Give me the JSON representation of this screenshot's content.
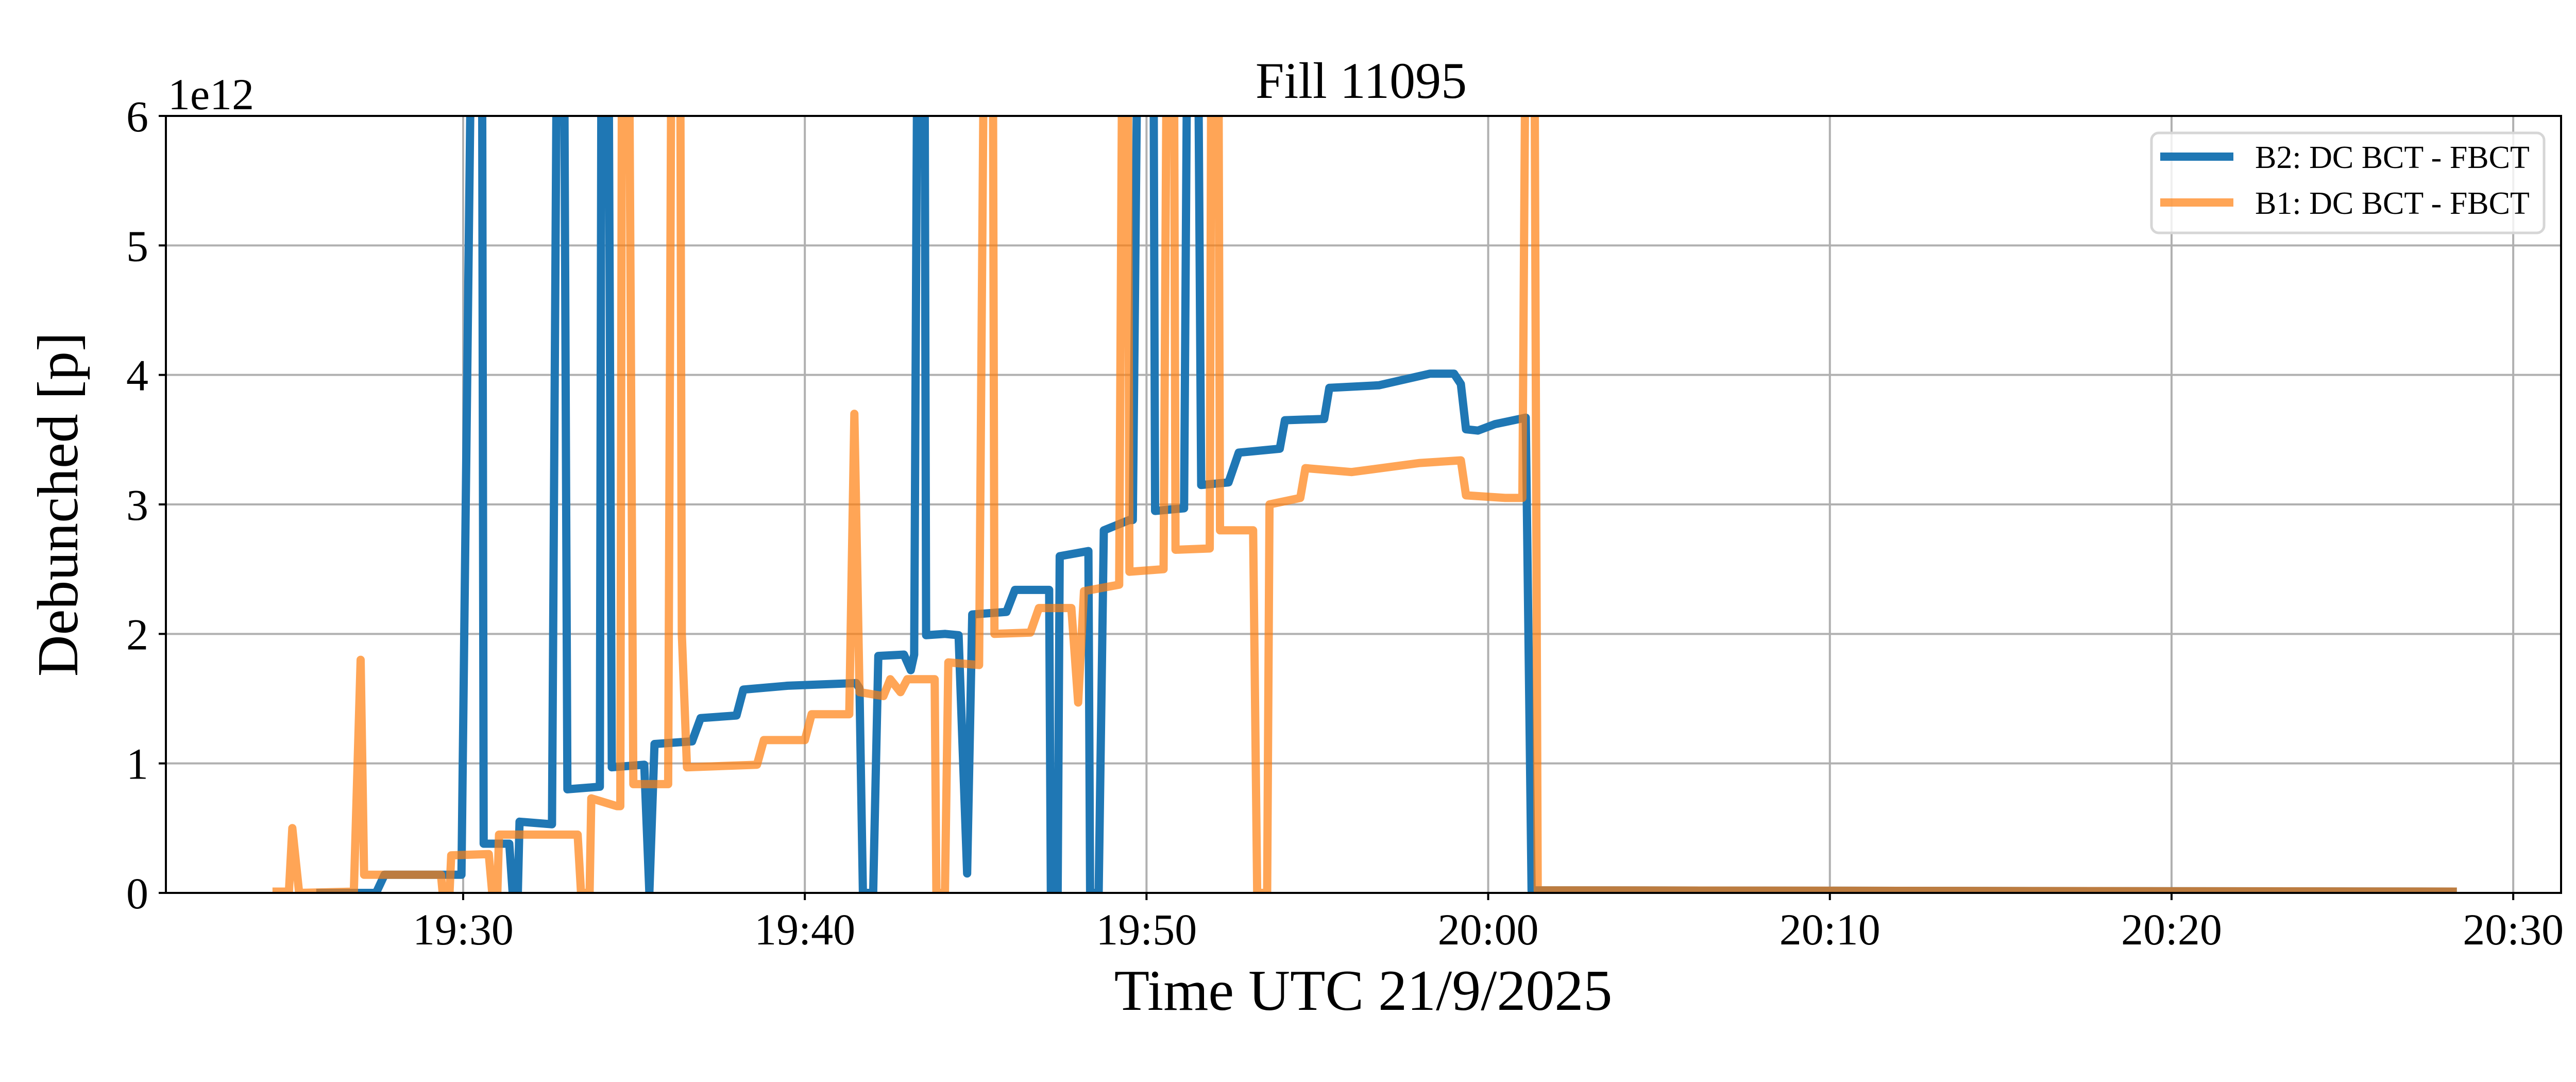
{
  "chart_data": {
    "type": "line",
    "title": "Fill 11095",
    "xlabel": "Time UTC 21/9/2025",
    "ylabel": "Debunched [p]",
    "y_offset_label": "1e12",
    "x_unit": "minutes after 19:30 UTC",
    "y_unit": "1e12 p",
    "xlim": [
      -8.7,
      61.4
    ],
    "ylim": [
      0,
      6
    ],
    "grid": true,
    "legend_position": "top-right",
    "x_ticks": [
      {
        "v": 0,
        "label": "19:30"
      },
      {
        "v": 10,
        "label": "19:40"
      },
      {
        "v": 20,
        "label": "19:50"
      },
      {
        "v": 30,
        "label": "20:00"
      },
      {
        "v": 40,
        "label": "20:10"
      },
      {
        "v": 50,
        "label": "20:20"
      },
      {
        "v": 60,
        "label": "20:30"
      }
    ],
    "y_ticks": [
      {
        "v": 0,
        "label": "0"
      },
      {
        "v": 1,
        "label": "1"
      },
      {
        "v": 2,
        "label": "2"
      },
      {
        "v": 3,
        "label": "3"
      },
      {
        "v": 4,
        "label": "4"
      },
      {
        "v": 5,
        "label": "5"
      },
      {
        "v": 6,
        "label": "6"
      }
    ],
    "series": [
      {
        "name": "B2: DC BCT - FBCT",
        "color": "#1f77b4",
        "opacity": 1,
        "points": [
          [
            -4.3,
            0
          ],
          [
            -2.55,
            0
          ],
          [
            -2.3,
            0.14
          ],
          [
            -0.05,
            0.14
          ],
          [
            0.25,
            7
          ],
          [
            0.55,
            7
          ],
          [
            0.6,
            0.38
          ],
          [
            1.35,
            0.38
          ],
          [
            1.45,
            0
          ],
          [
            1.6,
            0
          ],
          [
            1.65,
            0.55
          ],
          [
            2.6,
            0.53
          ],
          [
            2.75,
            7
          ],
          [
            2.95,
            7
          ],
          [
            3.05,
            0.8
          ],
          [
            4.0,
            0.82
          ],
          [
            4.05,
            7
          ],
          [
            4.25,
            7
          ],
          [
            4.35,
            0.97
          ],
          [
            5.3,
            0.99
          ],
          [
            5.45,
            0
          ],
          [
            5.6,
            1.15
          ],
          [
            6.7,
            1.17
          ],
          [
            6.95,
            1.35
          ],
          [
            8.0,
            1.37
          ],
          [
            8.2,
            1.57
          ],
          [
            9.5,
            1.6
          ],
          [
            11.5,
            1.62
          ],
          [
            11.6,
            1.58
          ],
          [
            11.7,
            0
          ],
          [
            12.0,
            0
          ],
          [
            12.15,
            1.83
          ],
          [
            12.9,
            1.84
          ],
          [
            13.1,
            1.72
          ],
          [
            13.2,
            1.84
          ],
          [
            13.3,
            7
          ],
          [
            13.5,
            7
          ],
          [
            13.55,
            1.99
          ],
          [
            14.1,
            2.0
          ],
          [
            14.5,
            1.99
          ],
          [
            14.75,
            0.15
          ],
          [
            14.9,
            2.15
          ],
          [
            15.9,
            2.17
          ],
          [
            16.15,
            2.34
          ],
          [
            17.15,
            2.34
          ],
          [
            17.2,
            0
          ],
          [
            17.4,
            0
          ],
          [
            17.46,
            2.6
          ],
          [
            18.3,
            2.64
          ],
          [
            18.35,
            0
          ],
          [
            18.6,
            0
          ],
          [
            18.75,
            2.8
          ],
          [
            19.5,
            2.88
          ],
          [
            19.6,
            2.88
          ],
          [
            19.75,
            7
          ],
          [
            20.2,
            7
          ],
          [
            20.25,
            2.95
          ],
          [
            21.1,
            2.97
          ],
          [
            21.2,
            7
          ],
          [
            21.5,
            7
          ],
          [
            21.6,
            3.15
          ],
          [
            22.4,
            3.17
          ],
          [
            22.7,
            3.4
          ],
          [
            23.9,
            3.43
          ],
          [
            24.05,
            3.65
          ],
          [
            25.2,
            3.66
          ],
          [
            25.35,
            3.9
          ],
          [
            26.8,
            3.92
          ],
          [
            28.3,
            4.01
          ],
          [
            29.0,
            4.01
          ],
          [
            29.2,
            3.93
          ],
          [
            29.35,
            3.58
          ],
          [
            29.7,
            3.57
          ],
          [
            30.2,
            3.62
          ],
          [
            31.1,
            3.67
          ],
          [
            31.27,
            0.02
          ],
          [
            58.35,
            0.01
          ]
        ]
      },
      {
        "name": "B1: DC BCT - FBCT",
        "color": "#ff7f0e",
        "opacity": 0.7,
        "points": [
          [
            -5.58,
            0.01
          ],
          [
            -5.1,
            0.01
          ],
          [
            -5.0,
            0.5
          ],
          [
            -4.8,
            0
          ],
          [
            -3.2,
            0.01
          ],
          [
            -3.0,
            1.8
          ],
          [
            -2.9,
            0.14
          ],
          [
            -0.65,
            0.14
          ],
          [
            -0.6,
            0
          ],
          [
            -0.4,
            0
          ],
          [
            -0.35,
            0.29
          ],
          [
            0.75,
            0.3
          ],
          [
            0.85,
            0
          ],
          [
            1.0,
            0
          ],
          [
            1.05,
            0.45
          ],
          [
            3.35,
            0.45
          ],
          [
            3.45,
            0
          ],
          [
            3.7,
            0
          ],
          [
            3.75,
            0.73
          ],
          [
            4.5,
            0.67
          ],
          [
            4.6,
            0.67
          ],
          [
            4.65,
            7
          ],
          [
            4.85,
            7
          ],
          [
            4.98,
            0.84
          ],
          [
            6.0,
            0.84
          ],
          [
            6.1,
            7
          ],
          [
            6.35,
            7
          ],
          [
            6.4,
            2.0
          ],
          [
            6.55,
            0.97
          ],
          [
            8.6,
            0.99
          ],
          [
            8.8,
            1.18
          ],
          [
            10.0,
            1.18
          ],
          [
            10.2,
            1.38
          ],
          [
            11.3,
            1.38
          ],
          [
            11.45,
            3.7
          ],
          [
            11.6,
            1.55
          ],
          [
            12.3,
            1.52
          ],
          [
            12.5,
            1.65
          ],
          [
            12.8,
            1.55
          ],
          [
            13.0,
            1.65
          ],
          [
            13.8,
            1.65
          ],
          [
            13.85,
            0
          ],
          [
            14.1,
            0
          ],
          [
            14.2,
            1.78
          ],
          [
            15.1,
            1.76
          ],
          [
            15.25,
            7
          ],
          [
            15.5,
            7
          ],
          [
            15.55,
            2.0
          ],
          [
            16.6,
            2.01
          ],
          [
            16.85,
            2.2
          ],
          [
            17.8,
            2.2
          ],
          [
            18.0,
            1.47
          ],
          [
            18.17,
            2.33
          ],
          [
            19.2,
            2.38
          ],
          [
            19.3,
            7
          ],
          [
            19.45,
            7
          ],
          [
            19.5,
            2.48
          ],
          [
            20.5,
            2.5
          ],
          [
            20.6,
            7
          ],
          [
            20.8,
            7
          ],
          [
            20.85,
            2.65
          ],
          [
            21.85,
            2.66
          ],
          [
            21.9,
            7
          ],
          [
            22.1,
            7
          ],
          [
            22.15,
            2.8
          ],
          [
            23.12,
            2.8
          ],
          [
            23.24,
            0
          ],
          [
            23.53,
            0
          ],
          [
            23.6,
            3.0
          ],
          [
            24.5,
            3.05
          ],
          [
            24.65,
            3.28
          ],
          [
            26.0,
            3.25
          ],
          [
            28.0,
            3.32
          ],
          [
            29.2,
            3.34
          ],
          [
            29.35,
            3.07
          ],
          [
            30.5,
            3.05
          ],
          [
            31.0,
            3.05
          ],
          [
            31.1,
            7
          ],
          [
            31.35,
            7
          ],
          [
            31.45,
            0.02
          ],
          [
            58.35,
            0.01
          ]
        ]
      }
    ]
  }
}
